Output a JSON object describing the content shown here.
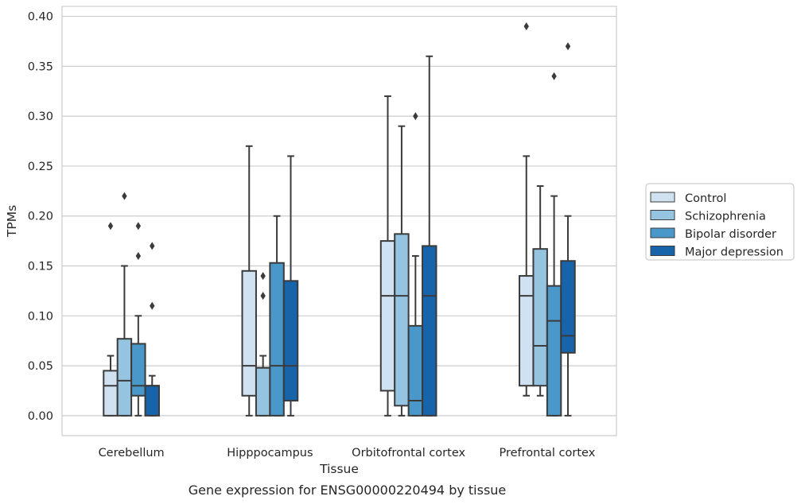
{
  "caption": "Gene expression for ENSG00000220494 by tissue",
  "chart_data": {
    "type": "boxplot",
    "title": "",
    "xlabel": "Tissue",
    "ylabel": "TPMs",
    "ylim": [
      -0.02,
      0.41
    ],
    "yticks": [
      "0.00",
      "0.05",
      "0.10",
      "0.15",
      "0.20",
      "0.25",
      "0.30",
      "0.35",
      "0.40"
    ],
    "ytick_values": [
      0,
      0.05,
      0.1,
      0.15,
      0.2,
      0.25,
      0.3,
      0.35,
      0.4
    ],
    "grid": "horizontal",
    "legend_position": "right",
    "categories": [
      "Cerebellum",
      "Hipppocampus",
      "Orbitofrontal cortex",
      "Prefrontal cortex"
    ],
    "series": [
      {
        "name": "Control",
        "color": "#d0e1f2",
        "boxes": [
          {
            "whislo": 0.0,
            "q1": 0.0,
            "med": 0.03,
            "q3": 0.045,
            "whishi": 0.06,
            "fliers": [
              0.19
            ]
          },
          {
            "whislo": 0.0,
            "q1": 0.02,
            "med": 0.05,
            "q3": 0.145,
            "whishi": 0.27,
            "fliers": []
          },
          {
            "whislo": 0.0,
            "q1": 0.025,
            "med": 0.12,
            "q3": 0.175,
            "whishi": 0.32,
            "fliers": []
          },
          {
            "whislo": 0.02,
            "q1": 0.03,
            "med": 0.12,
            "q3": 0.14,
            "whishi": 0.26,
            "fliers": [
              0.39
            ]
          }
        ]
      },
      {
        "name": "Schizophrenia",
        "color": "#94c4df",
        "boxes": [
          {
            "whislo": 0.0,
            "q1": 0.0,
            "med": 0.035,
            "q3": 0.077,
            "whishi": 0.15,
            "fliers": [
              0.22
            ]
          },
          {
            "whislo": 0.0,
            "q1": 0.0,
            "med": 0.048,
            "q3": 0.048,
            "whishi": 0.06,
            "fliers": [
              0.12,
              0.14
            ]
          },
          {
            "whislo": 0.0,
            "q1": 0.01,
            "med": 0.12,
            "q3": 0.182,
            "whishi": 0.29,
            "fliers": []
          },
          {
            "whislo": 0.02,
            "q1": 0.03,
            "med": 0.07,
            "q3": 0.167,
            "whishi": 0.23,
            "fliers": []
          }
        ]
      },
      {
        "name": "Bipolar disorder",
        "color": "#4a98c9",
        "boxes": [
          {
            "whislo": 0.0,
            "q1": 0.02,
            "med": 0.03,
            "q3": 0.072,
            "whishi": 0.1,
            "fliers": [
              0.16,
              0.19
            ]
          },
          {
            "whislo": 0.0,
            "q1": 0.0,
            "med": 0.05,
            "q3": 0.153,
            "whishi": 0.2,
            "fliers": []
          },
          {
            "whislo": 0.0,
            "q1": 0.0,
            "med": 0.015,
            "q3": 0.09,
            "whishi": 0.16,
            "fliers": [
              0.3
            ]
          },
          {
            "whislo": 0.0,
            "q1": 0.0,
            "med": 0.095,
            "q3": 0.13,
            "whishi": 0.22,
            "fliers": [
              0.34
            ]
          }
        ]
      },
      {
        "name": "Major depression",
        "color": "#1764ab",
        "boxes": [
          {
            "whislo": 0.0,
            "q1": 0.0,
            "med": 0.03,
            "q3": 0.03,
            "whishi": 0.04,
            "fliers": [
              0.11,
              0.17
            ]
          },
          {
            "whislo": 0.0,
            "q1": 0.015,
            "med": 0.05,
            "q3": 0.135,
            "whishi": 0.26,
            "fliers": []
          },
          {
            "whislo": 0.0,
            "q1": 0.0,
            "med": 0.12,
            "q3": 0.17,
            "whishi": 0.36,
            "fliers": []
          },
          {
            "whislo": 0.0,
            "q1": 0.063,
            "med": 0.08,
            "q3": 0.155,
            "whishi": 0.2,
            "fliers": [
              0.37
            ]
          }
        ]
      }
    ]
  }
}
